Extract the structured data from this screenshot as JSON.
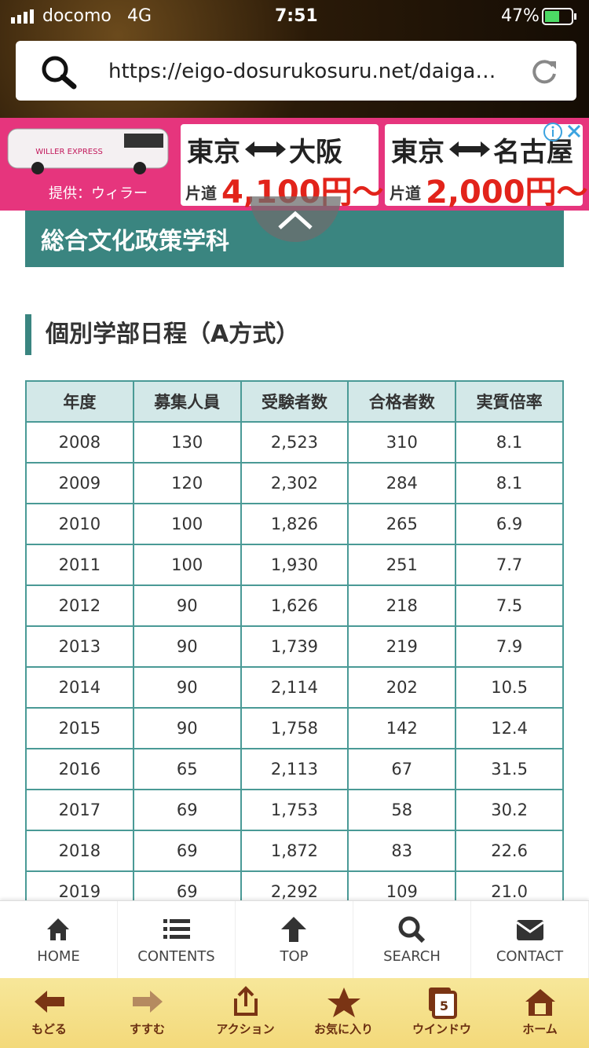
{
  "status_bar": {
    "carrier": "docomo",
    "network": "4G",
    "time": "7:51",
    "battery": "47%"
  },
  "address_bar": {
    "url": "https://eigo-dosurukosuru.net/daiga…"
  },
  "ad": {
    "brand": "WILLER EXPRESS",
    "provider": "提供：ウィラー",
    "offers": [
      {
        "from": "東京",
        "to": "大阪",
        "fare_label": "片道",
        "price": "4,100円～"
      },
      {
        "from": "東京",
        "to": "名古屋",
        "fare_label": "片道",
        "price": "2,000円～"
      }
    ]
  },
  "section_heading": "総合文化政策学科",
  "subheading": "個別学部日程（A方式）",
  "table": {
    "header": [
      "年度",
      "募集人員",
      "受験者数",
      "合格者数",
      "実質倍率"
    ],
    "rows": [
      [
        "2008",
        "130",
        "2,523",
        "310",
        "8.1"
      ],
      [
        "2009",
        "120",
        "2,302",
        "284",
        "8.1"
      ],
      [
        "2010",
        "100",
        "1,826",
        "265",
        "6.9"
      ],
      [
        "2011",
        "100",
        "1,930",
        "251",
        "7.7"
      ],
      [
        "2012",
        "90",
        "1,626",
        "218",
        "7.5"
      ],
      [
        "2013",
        "90",
        "1,739",
        "219",
        "7.9"
      ],
      [
        "2014",
        "90",
        "2,114",
        "202",
        "10.5"
      ],
      [
        "2015",
        "90",
        "1,758",
        "142",
        "12.4"
      ],
      [
        "2016",
        "65",
        "2,113",
        "67",
        "31.5"
      ],
      [
        "2017",
        "69",
        "1,753",
        "58",
        "30.2"
      ],
      [
        "2018",
        "69",
        "1,872",
        "83",
        "22.6"
      ],
      [
        "2019",
        "69",
        "2,292",
        "109",
        "21.0"
      ]
    ]
  },
  "bottom_nav": [
    "HOME",
    "CONTENTS",
    "TOP",
    "SEARCH",
    "CONTACT"
  ],
  "browser_toolbar": {
    "items": [
      "もどる",
      "すすむ",
      "アクション",
      "お気に入り",
      "ウインドウ",
      "ホーム"
    ],
    "window_count": "5"
  }
}
